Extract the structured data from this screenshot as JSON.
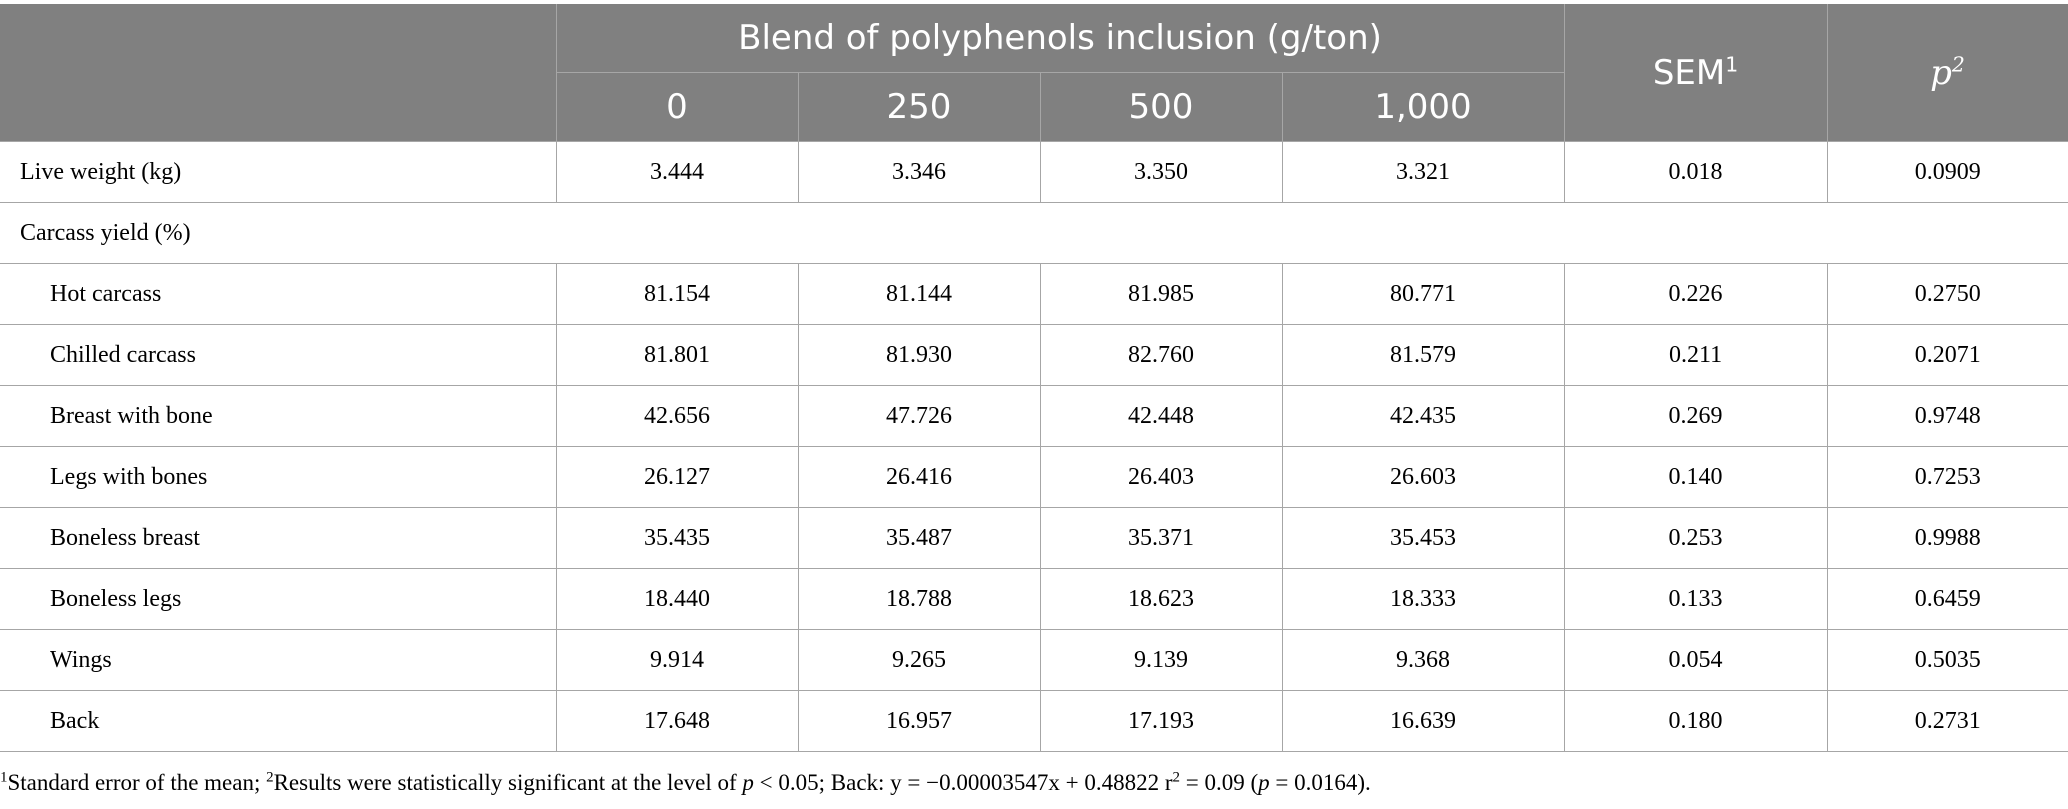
{
  "table": {
    "group_header": "Blend of polyphenols inclusion (g/ton)",
    "dose_headers": [
      "0",
      "250",
      "500",
      "1,000"
    ],
    "sem_header": "SEM",
    "sem_sup": "1",
    "p_header": "p",
    "p_sup": "2",
    "rows": [
      {
        "label": "Live weight (kg)",
        "indent": false,
        "values": [
          "3.444",
          "3.346",
          "3.350",
          "3.321",
          "0.018",
          "0.0909"
        ]
      },
      {
        "label": "Carcass yield (%)",
        "indent": false,
        "section": true,
        "values": []
      },
      {
        "label": "Hot carcass",
        "indent": true,
        "values": [
          "81.154",
          "81.144",
          "81.985",
          "80.771",
          "0.226",
          "0.2750"
        ]
      },
      {
        "label": "Chilled carcass",
        "indent": true,
        "values": [
          "81.801",
          "81.930",
          "82.760",
          "81.579",
          "0.211",
          "0.2071"
        ]
      },
      {
        "label": "Breast with bone",
        "indent": true,
        "values": [
          "42.656",
          "47.726",
          "42.448",
          "42.435",
          "0.269",
          "0.9748"
        ]
      },
      {
        "label": "Legs with bones",
        "indent": true,
        "values": [
          "26.127",
          "26.416",
          "26.403",
          "26.603",
          "0.140",
          "0.7253"
        ]
      },
      {
        "label": "Boneless breast",
        "indent": true,
        "values": [
          "35.435",
          "35.487",
          "35.371",
          "35.453",
          "0.253",
          "0.9988"
        ]
      },
      {
        "label": "Boneless legs",
        "indent": true,
        "values": [
          "18.440",
          "18.788",
          "18.623",
          "18.333",
          "0.133",
          "0.6459"
        ]
      },
      {
        "label": "Wings",
        "indent": true,
        "values": [
          "9.914",
          "9.265",
          "9.139",
          "9.368",
          "0.054",
          "0.5035"
        ]
      },
      {
        "label": "Back",
        "indent": true,
        "values": [
          "17.648",
          "16.957",
          "17.193",
          "16.639",
          "0.180",
          "0.2731"
        ]
      }
    ]
  },
  "footnote": {
    "sup1": "1",
    "part1": "Standard error of the mean; ",
    "sup2": "2",
    "part2": "Results were statistically significant at the level of ",
    "p_italic": "p",
    "part3": " < 0.05; Back: y = −0.00003547x + 0.48822 r",
    "r_sup": "2",
    "part4": " = 0.09 (",
    "p_italic2": "p",
    "part5": " = 0.0164)."
  },
  "colors": {
    "header_bg": "#808080",
    "header_text": "#ffffff",
    "grid": "#a6a6a6"
  }
}
